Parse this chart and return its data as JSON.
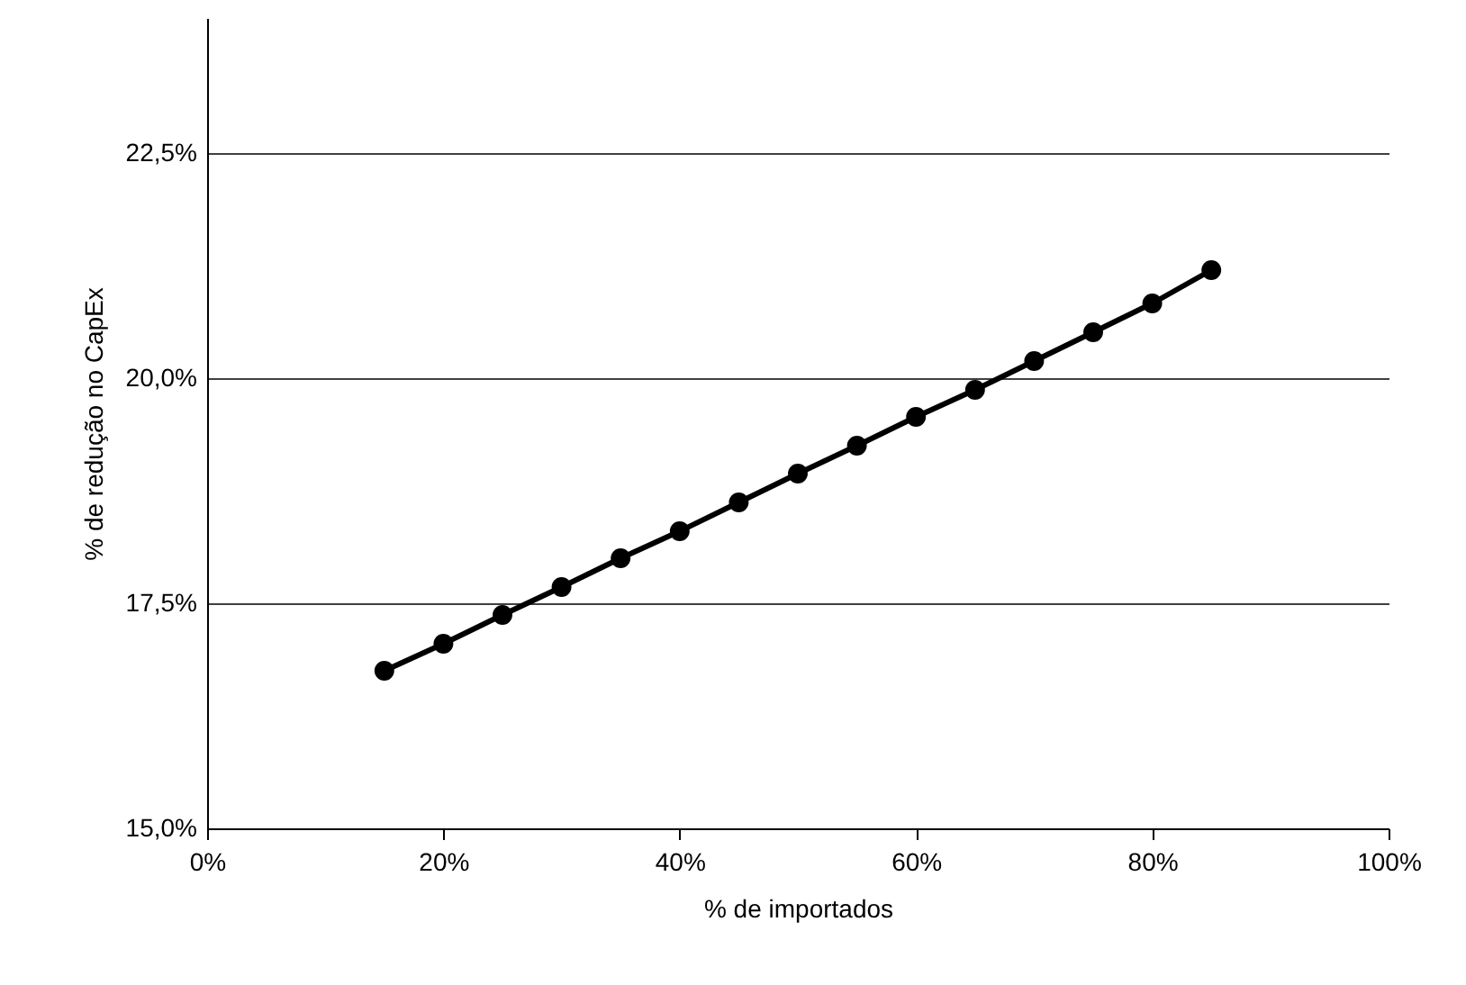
{
  "chart_data": {
    "type": "line",
    "xlabel": "% de importados",
    "ylabel": "% de redução no CapEx",
    "x": [
      15,
      20,
      25,
      30,
      35,
      40,
      45,
      50,
      55,
      60,
      65,
      70,
      75,
      80,
      85
    ],
    "series": [
      {
        "color": "#000000",
        "values": [
          16.75,
          17.05,
          17.37,
          17.68,
          18.0,
          18.3,
          18.62,
          18.94,
          19.25,
          19.57,
          19.87,
          20.19,
          20.51,
          20.83,
          21.2
        ]
      }
    ],
    "xlim": [
      0,
      100
    ],
    "xticks": [
      {
        "value": 0,
        "label": "0%"
      },
      {
        "value": 20,
        "label": "20%"
      },
      {
        "value": 40,
        "label": "40%"
      },
      {
        "value": 60,
        "label": "60%"
      },
      {
        "value": 80,
        "label": "80%"
      },
      {
        "value": 100,
        "label": "100%"
      }
    ],
    "ylim": [
      15,
      24
    ],
    "yticks": [
      {
        "value": 15,
        "label": "15,0%"
      },
      {
        "value": 17.5,
        "label": "17,5%"
      },
      {
        "value": 20,
        "label": "20,0%"
      },
      {
        "value": 22.5,
        "label": "22,5%"
      }
    ],
    "grid": "y",
    "marker": "circle",
    "line_style": "solid"
  }
}
